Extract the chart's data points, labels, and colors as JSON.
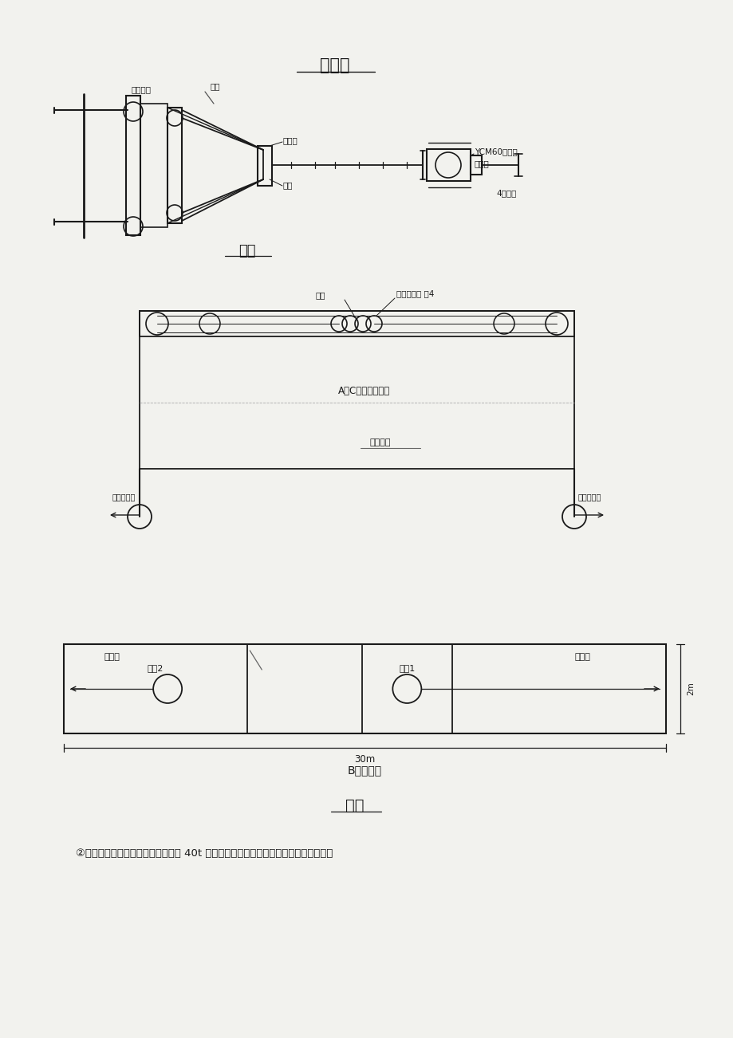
{
  "bg_color": "#f2f2ee",
  "title_lm": "立　面",
  "fig1_label": "图一",
  "fig3_label": "图三",
  "labels_fig1": {
    "hengyi": "横移机构",
    "laban": "拉板",
    "duntouzhao": "墩头锚",
    "suoliang": "锚梁",
    "YCM": "YCM60穿心顶",
    "beiguliang": "悬臂梁",
    "kongmaoju": "4孔锚具"
  },
  "labels_fig2": {
    "suoliang": "索鞲",
    "shuangmen": "双门滑车组 走4",
    "AC": "A、C塔顶横梁立面",
    "zhuanxiang": "转向滑车",
    "left_wind": "进地卷扬机",
    "right_wind": "进地卷扬机"
  },
  "labels_fig3": {
    "left_jindao": "进导链",
    "right_jindao": "进导链",
    "suoliang1": "索鞲1",
    "suoliang2": "索鞲2",
    "dim_30m": "30m",
    "dim_2m": "2m",
    "caption": "B塔平面顶"
  },
  "bottom_text": "②主吊钩在起吊其他重物（其重量在 40t 以下即起吊盖梁及其他构件）时，两组主吊钩"
}
